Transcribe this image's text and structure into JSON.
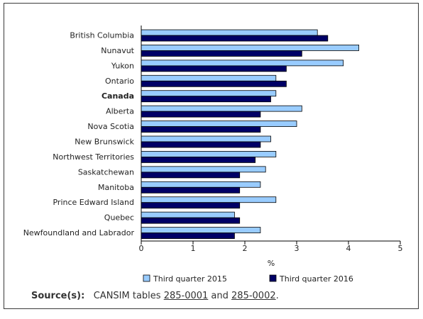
{
  "chart_data": {
    "type": "bar",
    "orientation": "horizontal",
    "categories": [
      "British Columbia",
      "Nunavut",
      "Yukon",
      "Ontario",
      "Canada",
      "Alberta",
      "Nova Scotia",
      "New Brunswick",
      "Northwest Territories",
      "Saskatchewan",
      "Manitoba",
      "Prince Edward Island",
      "Quebec",
      "Newfoundland and Labrador"
    ],
    "bold_categories": [
      "Canada"
    ],
    "series": [
      {
        "name": "Third quarter 2015",
        "color": "#99ccff",
        "values": [
          3.4,
          4.2,
          3.9,
          2.6,
          2.6,
          3.1,
          3.0,
          2.5,
          2.6,
          2.4,
          2.3,
          2.6,
          1.8,
          2.3
        ]
      },
      {
        "name": "Third quarter 2016",
        "color": "#000066",
        "values": [
          3.6,
          3.1,
          2.8,
          2.8,
          2.5,
          2.3,
          2.3,
          2.3,
          2.2,
          1.9,
          1.9,
          1.9,
          1.9,
          1.8
        ]
      }
    ],
    "xlim": [
      0,
      5
    ],
    "xticks": [
      "0",
      "1",
      "2",
      "3",
      "4",
      "5"
    ],
    "xlabel": "%",
    "ylabel": "",
    "title": "",
    "grid": false,
    "legend_position": "bottom"
  },
  "source": {
    "label": "Source(s):",
    "text_before": "CANSIM tables",
    "link1": "285-0001",
    "text_middle": "and",
    "link2": "285-0002",
    "text_after": "."
  }
}
